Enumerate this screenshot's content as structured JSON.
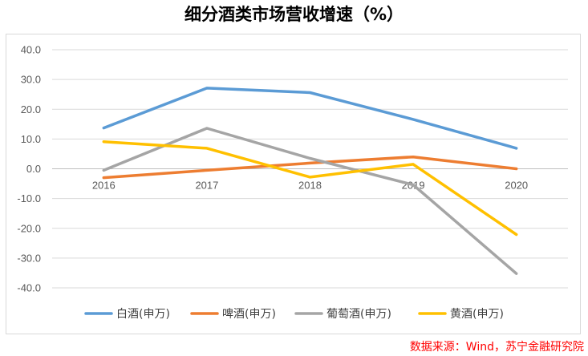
{
  "chart_data": {
    "type": "line",
    "title": "细分酒类市场营收增速（%）",
    "categories": [
      "2016",
      "2017",
      "2018",
      "2019",
      "2020"
    ],
    "ylim": [
      -40,
      40
    ],
    "yticks": [
      "40.0",
      "30.0",
      "20.0",
      "10.0",
      "0.0",
      "-10.0",
      "-20.0",
      "-30.0",
      "-40.0"
    ],
    "grid": true,
    "legend_position": "bottom",
    "series": [
      {
        "name": "白酒(申万)",
        "color": "#5b9bd5",
        "values": [
          13.7,
          27.1,
          25.6,
          16.6,
          6.9
        ]
      },
      {
        "name": "啤酒(申万)",
        "color": "#ed7d31",
        "values": [
          -3.0,
          -0.5,
          1.9,
          4.0,
          0.0
        ]
      },
      {
        "name": "葡萄酒(申万)",
        "color": "#a5a5a5",
        "values": [
          -0.5,
          13.6,
          3.5,
          -5.4,
          -35.2
        ]
      },
      {
        "name": "黄酒(申万)",
        "color": "#ffc000",
        "values": [
          9.1,
          6.9,
          -2.8,
          1.5,
          -22.1
        ]
      }
    ]
  },
  "source_text": "数据来源：Wind，苏宁金融研究院"
}
